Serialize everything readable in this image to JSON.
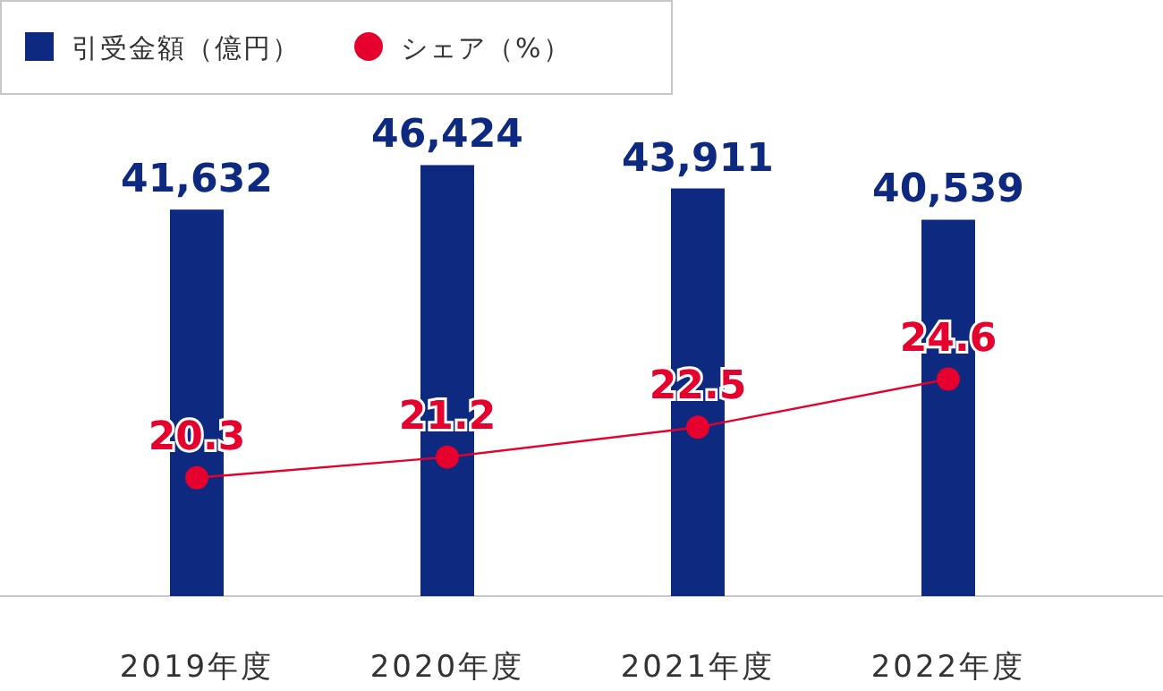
{
  "chart_data": {
    "type": "bar",
    "categories": [
      "2019年度",
      "2020年度",
      "2021年度",
      "2022年度"
    ],
    "series": [
      {
        "name": "引受金額（億円）",
        "color": "#0d2a80",
        "values": [
          41632,
          46424,
          43911,
          40539
        ],
        "value_labels": [
          "41,632",
          "46,424",
          "43,911",
          "40,539"
        ]
      },
      {
        "name": "シェア（%）",
        "type": "line",
        "axis": "y2",
        "color": "#e5002d",
        "marker": "circle",
        "values": [
          20.3,
          21.2,
          22.5,
          24.6
        ],
        "value_labels": [
          "20.3",
          "21.2",
          "22.5",
          "24.6"
        ]
      }
    ],
    "tick_labels": "x",
    "legend": "top left"
  }
}
